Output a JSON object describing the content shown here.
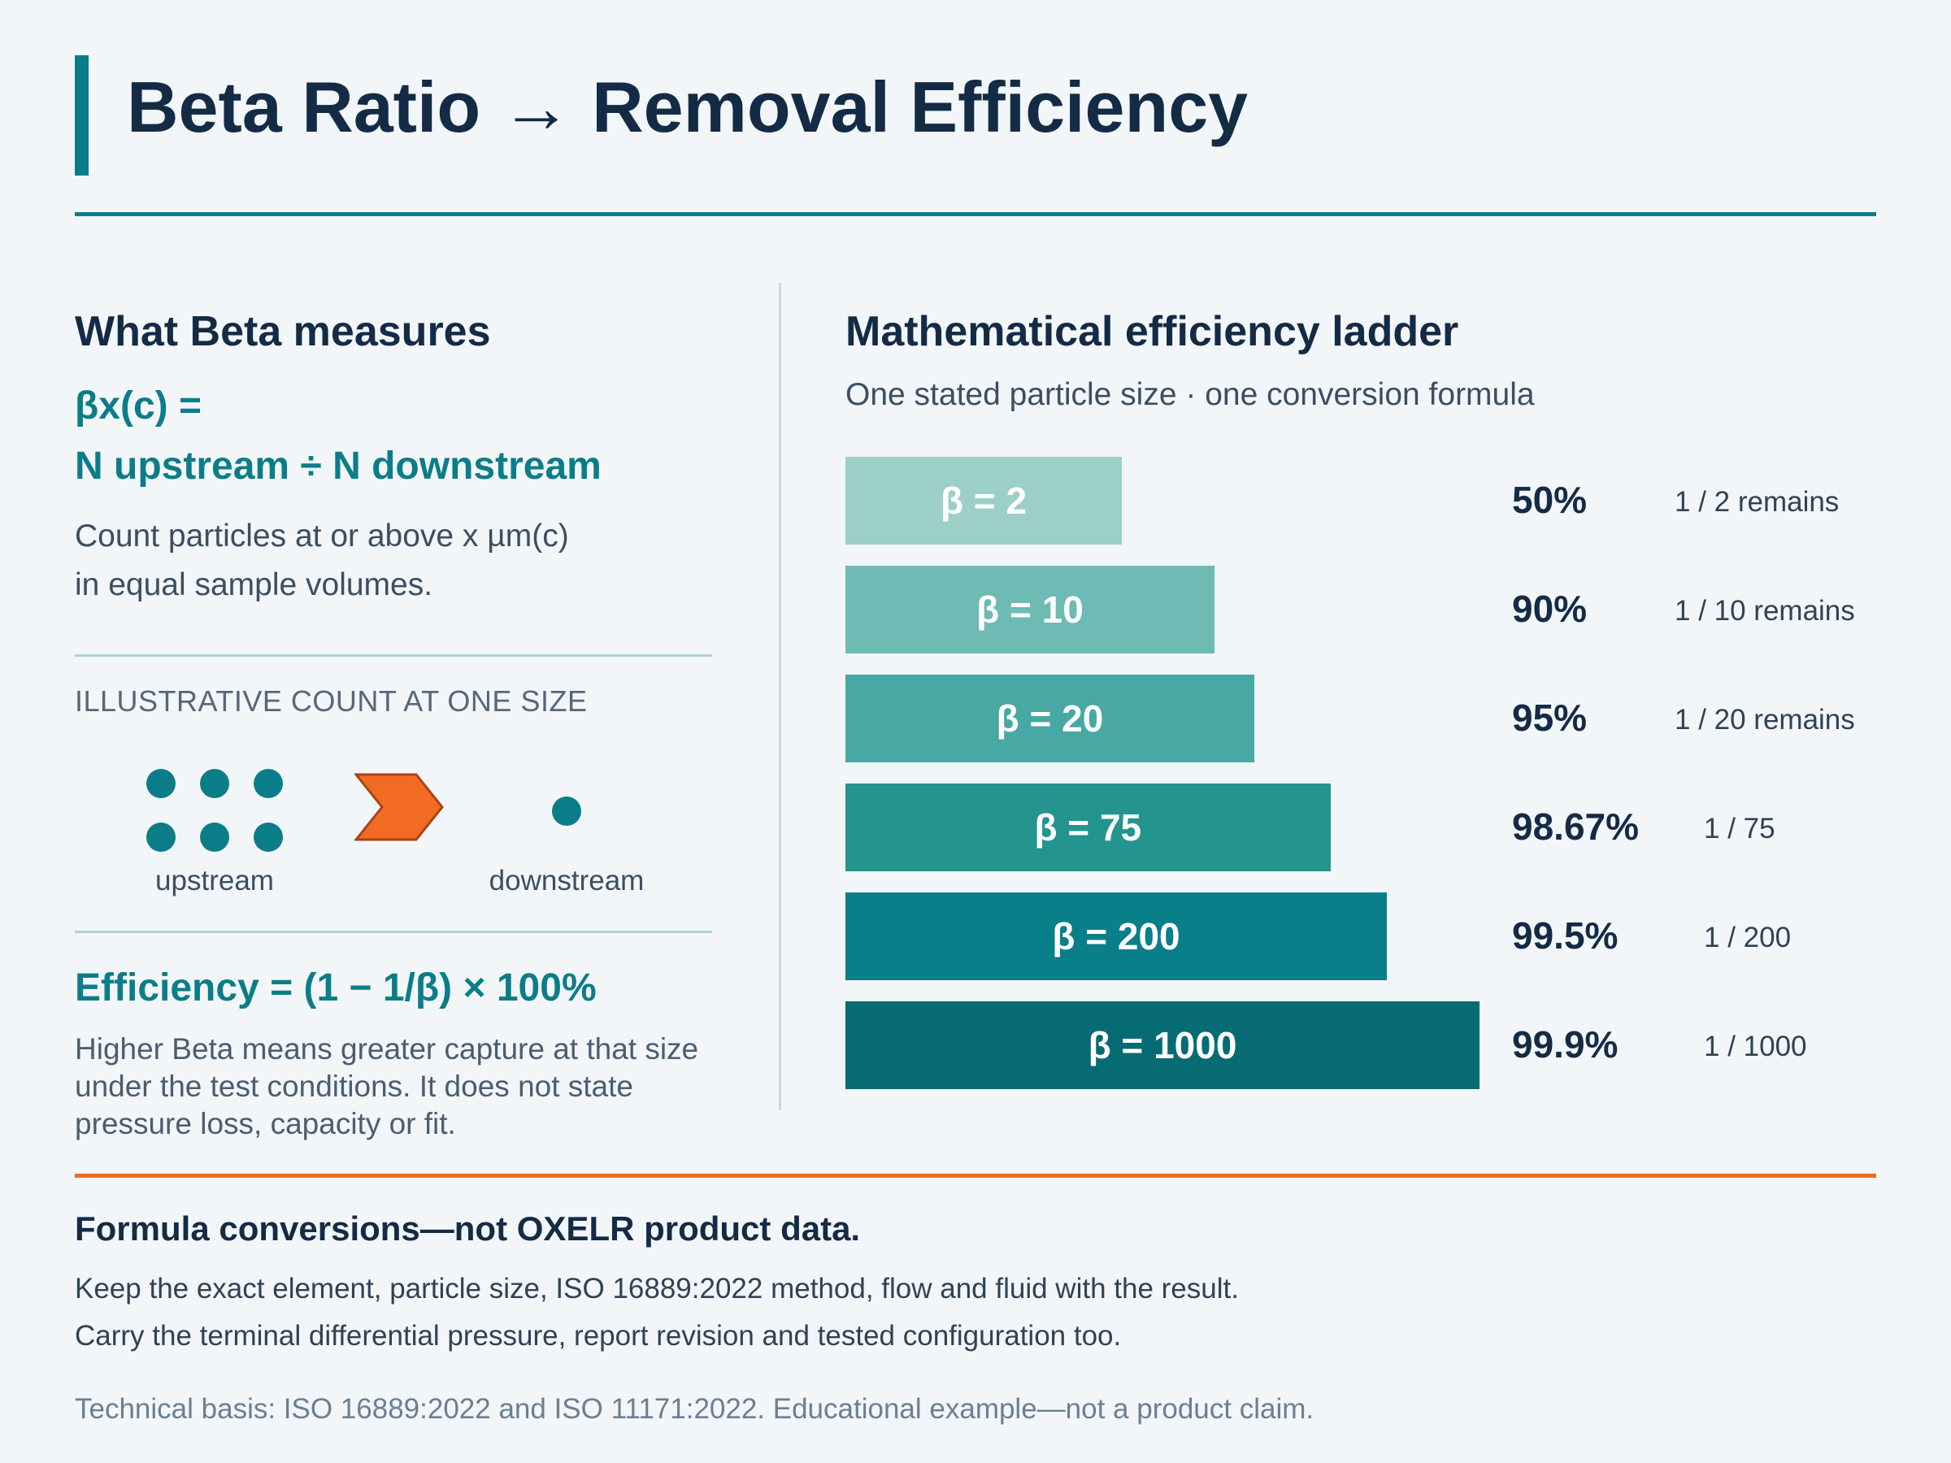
{
  "title": "Beta Ratio → Removal Efficiency",
  "left": {
    "heading": "What Beta measures",
    "formula_line1": "βx(c) =",
    "formula_line2": "N upstream ÷ N downstream",
    "description_line1": "Count particles at or above x µm(c)",
    "description_line2": "in equal sample volumes.",
    "illustration_label": "ILLUSTRATIVE COUNT AT ONE SIZE",
    "upstream_label": "upstream",
    "downstream_label": "downstream",
    "upstream_count": 6,
    "downstream_count": 1,
    "efficiency_formula": "Efficiency = (1 − 1/β) × 100%",
    "note_line1": "Higher Beta means greater capture at that size",
    "note_line2": "under the test conditions. It does not state",
    "note_line3": "pressure loss, capacity or fit."
  },
  "right": {
    "heading": "Mathematical efficiency ladder",
    "subheading": "One stated particle size · one conversion formula"
  },
  "chart_data": {
    "type": "bar",
    "categories": [
      "β = 2",
      "β = 10",
      "β = 20",
      "β = 75",
      "β = 200",
      "β = 1000"
    ],
    "beta": [
      2,
      10,
      20,
      75,
      200,
      1000
    ],
    "efficiency_labels": [
      "50%",
      "90%",
      "95%",
      "98.67%",
      "99.5%",
      "99.9%"
    ],
    "efficiency_values": [
      50,
      90,
      95,
      98.67,
      99.5,
      99.9
    ],
    "remaining_labels": [
      "1 / 2 remains",
      "1 / 10 remains",
      "1 / 20 remains",
      "1 / 75",
      "1 / 200",
      "1 / 1000"
    ],
    "colors": [
      "#9ccfc8",
      "#6dbbb4",
      "#48a8a3",
      "#23948e",
      "#097f8a",
      "#076b74"
    ]
  },
  "footer": {
    "heading": "Formula conversions—not OXELR product data.",
    "line1": "Keep the exact element, particle size, ISO 16889:2022 method, flow and fluid with the result.",
    "line2": "Carry the terminal differential pressure, report revision and tested configuration too.",
    "note": "Technical basis: ISO 16889:2022 and ISO 11171:2022. Educational example—not a product claim."
  },
  "colors": {
    "teal": "#0b7d88",
    "navy": "#142b45",
    "orange": "#ef6b24"
  }
}
